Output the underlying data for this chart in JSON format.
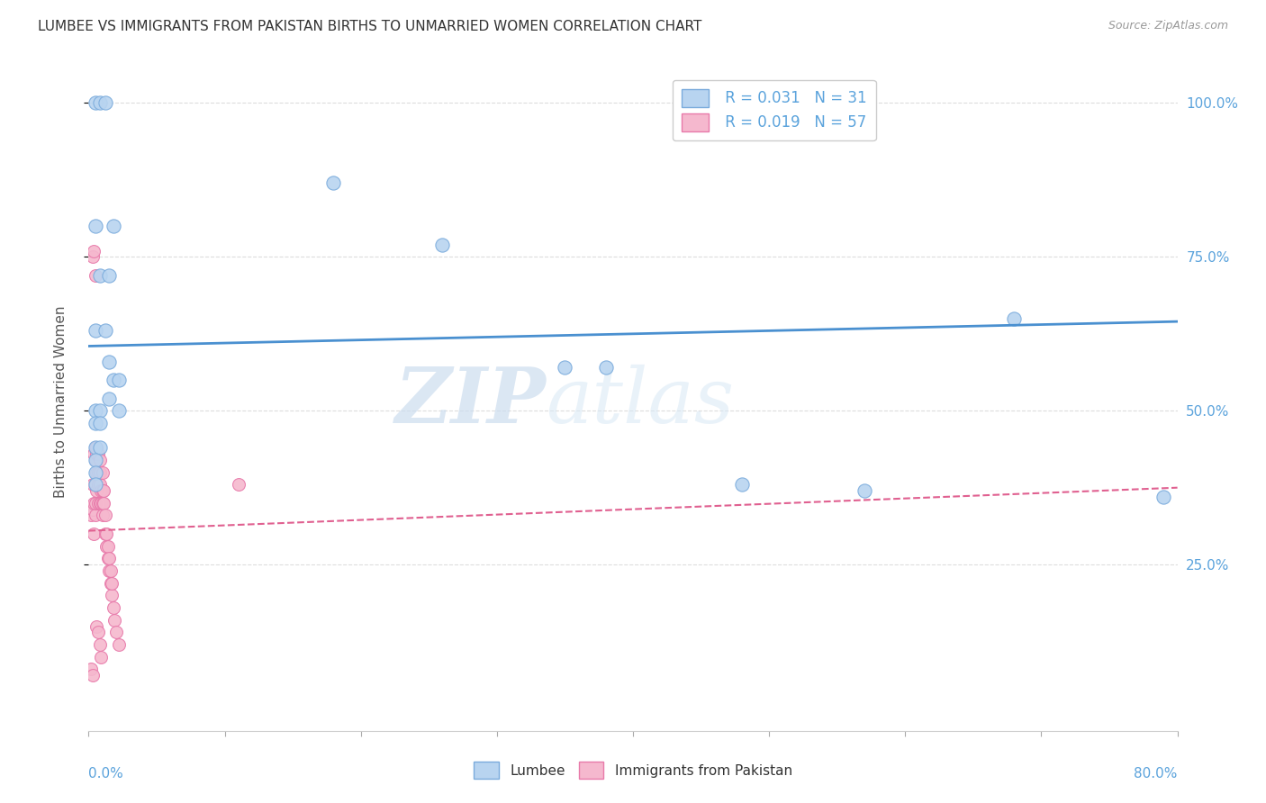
{
  "title": "LUMBEE VS IMMIGRANTS FROM PAKISTAN BIRTHS TO UNMARRIED WOMEN CORRELATION CHART",
  "source": "Source: ZipAtlas.com",
  "ylabel": "Births to Unmarried Women",
  "watermark_zip": "ZIP",
  "watermark_atlas": "atlas",
  "legend_lumbee_R": "R = 0.031",
  "legend_lumbee_N": "N = 31",
  "legend_pak_R": "R = 0.019",
  "legend_pak_N": "N = 57",
  "lumbee_color": "#b8d4f0",
  "pakistan_color": "#f5b8ce",
  "lumbee_edge_color": "#7aabdc",
  "pakistan_edge_color": "#e87aaa",
  "lumbee_line_color": "#4a90d0",
  "pakistan_line_color": "#e06090",
  "background_color": "#ffffff",
  "lumbee_x": [
    0.005,
    0.008,
    0.012,
    0.005,
    0.008,
    0.015,
    0.018,
    0.005,
    0.012,
    0.015,
    0.018,
    0.022,
    0.015,
    0.022,
    0.005,
    0.008,
    0.005,
    0.008,
    0.005,
    0.008,
    0.26,
    0.35,
    0.38,
    0.48,
    0.57,
    0.68,
    0.79,
    0.005,
    0.005,
    0.005,
    0.18
  ],
  "lumbee_y": [
    1.0,
    1.0,
    1.0,
    0.8,
    0.72,
    0.72,
    0.8,
    0.63,
    0.63,
    0.58,
    0.55,
    0.55,
    0.52,
    0.5,
    0.5,
    0.5,
    0.44,
    0.44,
    0.48,
    0.48,
    0.77,
    0.57,
    0.57,
    0.38,
    0.37,
    0.65,
    0.36,
    0.42,
    0.4,
    0.38,
    0.87
  ],
  "pakistan_x": [
    0.002,
    0.003,
    0.003,
    0.004,
    0.004,
    0.004,
    0.005,
    0.005,
    0.005,
    0.005,
    0.005,
    0.006,
    0.006,
    0.006,
    0.006,
    0.007,
    0.007,
    0.007,
    0.007,
    0.008,
    0.008,
    0.008,
    0.008,
    0.009,
    0.009,
    0.01,
    0.01,
    0.01,
    0.01,
    0.011,
    0.011,
    0.012,
    0.012,
    0.013,
    0.013,
    0.014,
    0.014,
    0.015,
    0.015,
    0.016,
    0.016,
    0.017,
    0.017,
    0.018,
    0.019,
    0.02,
    0.022,
    0.003,
    0.004,
    0.005,
    0.006,
    0.007,
    0.008,
    0.009,
    0.11,
    0.002,
    0.003
  ],
  "pakistan_y": [
    0.33,
    0.34,
    0.38,
    0.3,
    0.35,
    0.43,
    0.33,
    0.35,
    0.38,
    0.42,
    0.44,
    0.37,
    0.4,
    0.43,
    0.44,
    0.35,
    0.38,
    0.4,
    0.43,
    0.35,
    0.38,
    0.4,
    0.42,
    0.35,
    0.37,
    0.33,
    0.35,
    0.37,
    0.4,
    0.35,
    0.37,
    0.3,
    0.33,
    0.28,
    0.3,
    0.26,
    0.28,
    0.24,
    0.26,
    0.22,
    0.24,
    0.2,
    0.22,
    0.18,
    0.16,
    0.14,
    0.12,
    0.75,
    0.76,
    0.72,
    0.15,
    0.14,
    0.12,
    0.1,
    0.38,
    0.08,
    0.07
  ],
  "xlim": [
    0.0,
    0.8
  ],
  "ylim": [
    -0.02,
    1.05
  ],
  "title_fontsize": 11,
  "legend_fontsize": 12,
  "axis_color": "#5ba3dc",
  "tick_color": "#5ba3dc",
  "grid_color": "#dddddd",
  "lumbee_trend_start": 0.605,
  "lumbee_trend_end": 0.645,
  "pakistan_trend_start": 0.305,
  "pakistan_trend_end": 0.375
}
